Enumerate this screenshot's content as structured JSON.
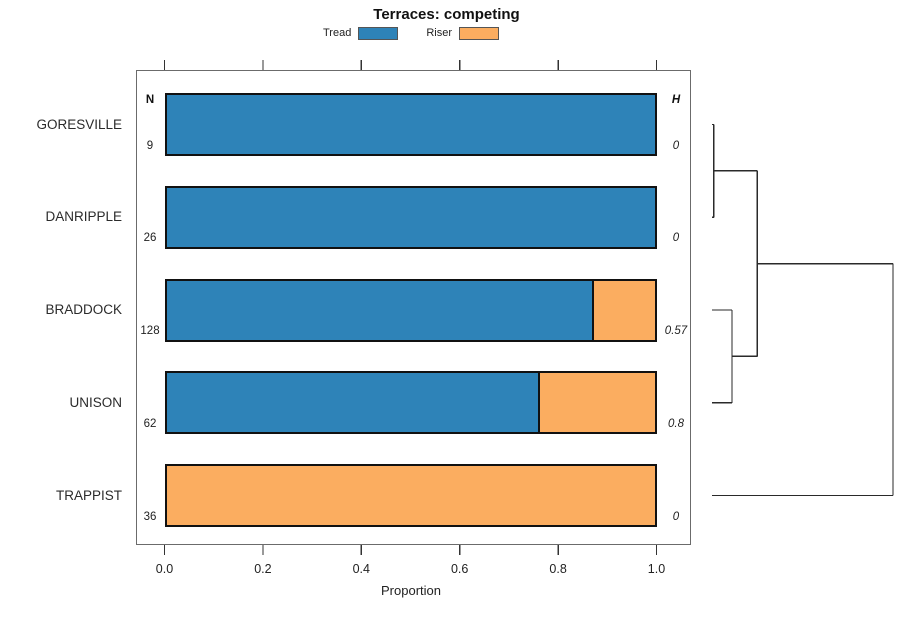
{
  "title": "Terraces: competing",
  "legend": {
    "items": [
      {
        "label": "Tread",
        "color": "#2e83b8"
      },
      {
        "label": "Riser",
        "color": "#fbad60"
      }
    ]
  },
  "columns": {
    "n_header": "N",
    "h_header": "H"
  },
  "chart_data": {
    "type": "bar",
    "variant": "horizontal-stacked-proportion-with-right-dendrogram",
    "title": "Terraces: competing",
    "xlabel": "Proportion",
    "xlim": [
      0,
      1
    ],
    "x_ticks": [
      0,
      0.2,
      0.4,
      0.6,
      0.8,
      1
    ],
    "x_tick_labels": [
      "0.0",
      "0.2",
      "0.4",
      "0.6",
      "0.8",
      "1.0"
    ],
    "ticks_on_top_and_bottom": true,
    "grid": false,
    "legend_position": "top-center",
    "categories": [
      "GORESVILLE",
      "DANRIPPLE",
      "BRADDOCK",
      "UNISON",
      "TRAPPIST"
    ],
    "series": [
      {
        "name": "Tread",
        "color": "#2e83b8",
        "values": [
          1.0,
          1.0,
          0.87,
          0.76,
          0.0
        ]
      },
      {
        "name": "Riser",
        "color": "#fbad60",
        "values": [
          0.0,
          0.0,
          0.13,
          0.24,
          1.0
        ]
      }
    ],
    "n_label": "N",
    "n_values": [
      9,
      26,
      128,
      62,
      36
    ],
    "h_label": "H",
    "h_values": [
      "0",
      "0",
      "0.57",
      "0.8",
      "0"
    ],
    "dendrogram": {
      "side": "right",
      "leaves": [
        "GORESVILLE",
        "DANRIPPLE",
        "BRADDOCK",
        "UNISON",
        "TRAPPIST"
      ],
      "merges": [
        {
          "a": "GORESVILLE",
          "b": "DANRIPPLE",
          "height": 0.01
        },
        {
          "a": "BRADDOCK",
          "b": "UNISON",
          "height": 0.11
        },
        {
          "a": "m0",
          "b": "m1",
          "height": 0.25
        },
        {
          "a": "m2",
          "b": "TRAPPIST",
          "height": 1.0
        }
      ]
    }
  }
}
